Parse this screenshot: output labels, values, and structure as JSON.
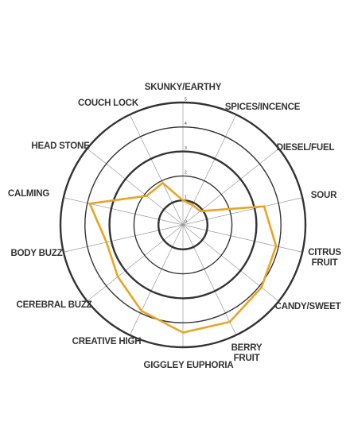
{
  "chart_data": {
    "type": "radar",
    "categories": [
      "SKUNKY/EARTHY",
      "SPICES/INCENCE",
      "DIESEL/FUEL",
      "SOUR",
      "CITRUS FRUIT",
      "CANDY/SWEET",
      "BERRY FRUIT",
      "GIGGLEY EUPHORIA",
      "CREATIVE HIGH",
      "CEREBRAL BUZZ",
      "BODY BUZZ",
      "CALMING",
      "HEAD STONE",
      "COUCH LOCK"
    ],
    "values": [
      1,
      0.9,
      0.9,
      3.4,
      3.9,
      4.1,
      4.4,
      4.4,
      3.9,
      3.4,
      3.2,
      3.9,
      1.9,
      1.9
    ],
    "color": "#e8a423",
    "ylim": [
      0,
      5
    ],
    "yticks": [
      0,
      1,
      2,
      3,
      4,
      5
    ]
  }
}
